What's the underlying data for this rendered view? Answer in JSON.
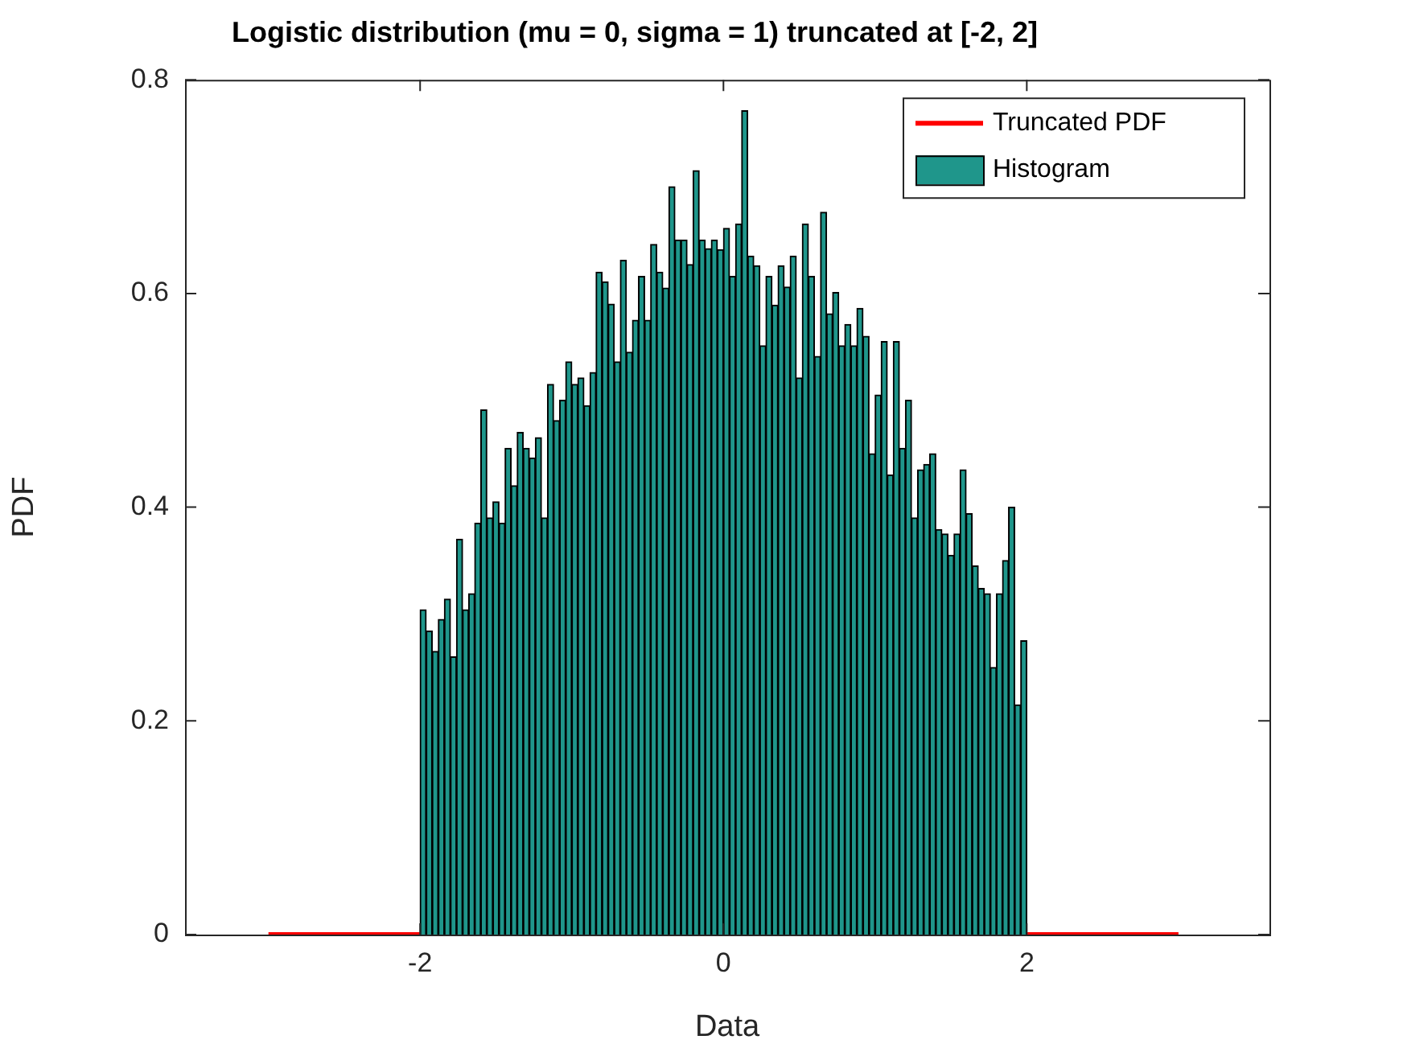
{
  "chart_data": {
    "type": "histogram",
    "title": "Logistic distribution (mu = 0, sigma = 1) truncated at [-2, 2]",
    "xlabel": "Data",
    "ylabel": "PDF",
    "bins": [
      -2,
      -1.96,
      -1.92,
      -1.88,
      -1.84,
      -1.8,
      -1.76,
      -1.72,
      -1.68,
      -1.64,
      -1.6,
      -1.56,
      -1.52,
      -1.48,
      -1.44,
      -1.4,
      -1.36,
      -1.32,
      -1.28,
      -1.24,
      -1.2,
      -1.16,
      -1.12,
      -1.08,
      -1.04,
      -1,
      -0.96,
      -0.92,
      -0.88,
      -0.84,
      -0.8,
      -0.76,
      -0.72,
      -0.68,
      -0.64,
      -0.6,
      -0.56,
      -0.52,
      -0.48,
      -0.44,
      -0.4,
      -0.36,
      -0.32,
      -0.28,
      -0.24,
      -0.2,
      -0.16,
      -0.12,
      -0.08,
      -0.04,
      0,
      0.04,
      0.08,
      0.12,
      0.16,
      0.2,
      0.24,
      0.28,
      0.32,
      0.36,
      0.4,
      0.44,
      0.48,
      0.52,
      0.56,
      0.6,
      0.64,
      0.68,
      0.72,
      0.76,
      0.8,
      0.84,
      0.88,
      0.92,
      0.96,
      1,
      1.04,
      1.08,
      1.12,
      1.16,
      1.2,
      1.24,
      1.28,
      1.32,
      1.36,
      1.4,
      1.44,
      1.48,
      1.52,
      1.56,
      1.6,
      1.64,
      1.68,
      1.72,
      1.76,
      1.8,
      1.84,
      1.88,
      1.92,
      1.96,
      2
    ],
    "series": [
      {
        "name": "Truncated PDF",
        "type": "line",
        "color": "#ff0000",
        "x": [
          -3,
          -2,
          0,
          2,
          3
        ],
        "values": [
          0,
          0,
          null,
          0,
          0
        ]
      },
      {
        "name": "Histogram",
        "color": "#1f968b",
        "values": [
          0.304,
          0.284,
          0.265,
          0.295,
          0.314,
          0.26,
          0.37,
          0.304,
          0.319,
          0.385,
          0.491,
          0.39,
          0.405,
          0.385,
          0.455,
          0.42,
          0.47,
          0.455,
          0.446,
          0.465,
          0.39,
          0.515,
          0.481,
          0.5,
          0.536,
          0.515,
          0.521,
          0.495,
          0.526,
          0.62,
          0.611,
          0.59,
          0.536,
          0.631,
          0.545,
          0.575,
          0.616,
          0.575,
          0.646,
          0.62,
          0.605,
          0.7,
          0.65,
          0.65,
          0.627,
          0.715,
          0.65,
          0.642,
          0.65,
          0.641,
          0.661,
          0.616,
          0.665,
          0.771,
          0.635,
          0.626,
          0.551,
          0.616,
          0.589,
          0.626,
          0.606,
          0.635,
          0.521,
          0.665,
          0.616,
          0.541,
          0.676,
          0.581,
          0.601,
          0.551,
          0.571,
          0.551,
          0.586,
          0.56,
          0.45,
          0.505,
          0.555,
          0.43,
          0.555,
          0.455,
          0.5,
          0.39,
          0.435,
          0.44,
          0.45,
          0.379,
          0.375,
          0.355,
          0.375,
          0.435,
          0.394,
          0.345,
          0.324,
          0.319,
          0.25,
          0.319,
          0.35,
          0.4,
          0.215,
          0.275
        ]
      }
    ],
    "xlim": [
      -3.55,
      3.6
    ],
    "xticks": [
      -2,
      0,
      2
    ],
    "ylim": [
      0,
      0.8
    ],
    "yticks": [
      0,
      0.2,
      0.4,
      0.6,
      0.8
    ],
    "grid": false,
    "legend": "top right"
  }
}
